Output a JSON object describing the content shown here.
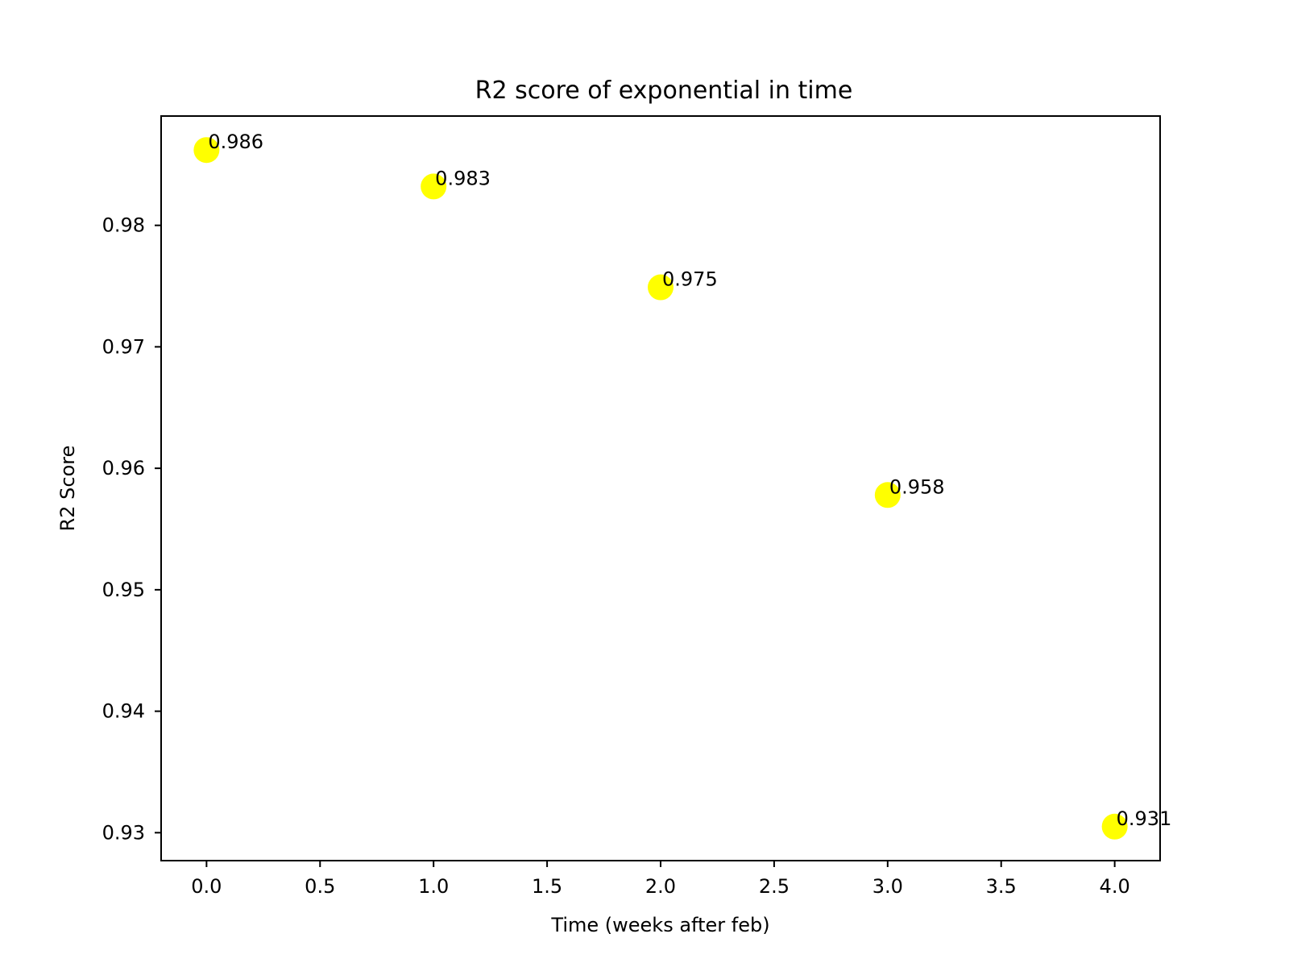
{
  "chart_data": {
    "type": "scatter",
    "title": "R2 score of exponential in time",
    "xlabel": "Time (weeks after feb)",
    "ylabel": "R2 Score",
    "x": [
      0,
      1,
      2,
      3,
      4
    ],
    "y": [
      0.9862,
      0.9832,
      0.9749,
      0.9578,
      0.9305
    ],
    "point_labels": [
      "0.986",
      "0.983",
      "0.975",
      "0.958",
      "0.931"
    ],
    "xlim": [
      -0.2,
      4.2
    ],
    "ylim": [
      0.9277,
      0.989
    ],
    "xticks": [
      0.0,
      0.5,
      1.0,
      1.5,
      2.0,
      2.5,
      3.0,
      3.5,
      4.0
    ],
    "xtick_labels": [
      "0.0",
      "0.5",
      "1.0",
      "1.5",
      "2.0",
      "2.5",
      "3.0",
      "3.5",
      "4.0"
    ],
    "yticks": [
      0.93,
      0.94,
      0.95,
      0.96,
      0.97,
      0.98
    ],
    "ytick_labels": [
      "0.93",
      "0.94",
      "0.95",
      "0.96",
      "0.97",
      "0.98"
    ],
    "grid": false,
    "legend": "none",
    "colors": {
      "point": "#ffff00",
      "axis": "#000000",
      "text": "#000000",
      "background": "#ffffff"
    }
  }
}
